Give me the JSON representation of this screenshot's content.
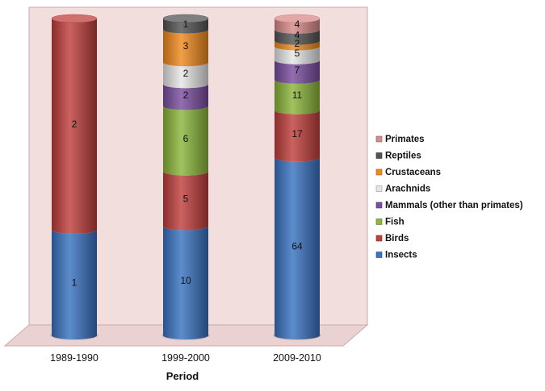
{
  "chart_data": {
    "type": "bar",
    "stacked": true,
    "style": "3d-cylinder",
    "title": "",
    "xlabel": "Period",
    "ylabel": "",
    "categories": [
      "1989-1990",
      "1999-2000",
      "2009-2010"
    ],
    "series": [
      {
        "name": "Insects",
        "color": "#3a73c1",
        "values": [
          1,
          10,
          64
        ]
      },
      {
        "name": "Birds",
        "color": "#c0403d",
        "values": [
          2,
          5,
          17
        ]
      },
      {
        "name": "Fish",
        "color": "#8cb63c",
        "values": [
          0,
          6,
          11
        ]
      },
      {
        "name": "Mammals (other than primates)",
        "color": "#7a4ea0",
        "values": [
          0,
          2,
          7
        ]
      },
      {
        "name": "Arachnids",
        "color": "#e6e6e6",
        "values": [
          0,
          2,
          5
        ]
      },
      {
        "name": "Crustaceans",
        "color": "#ef8a1f",
        "values": [
          0,
          3,
          2
        ]
      },
      {
        "name": "Reptiles",
        "color": "#545454",
        "values": [
          0,
          1,
          4
        ]
      },
      {
        "name": "Primates",
        "color": "#d98a8a",
        "values": [
          0,
          0,
          4
        ]
      }
    ],
    "legend_position": "right",
    "grid": false,
    "wall_color": "#f3dede",
    "floor_color": "#ebd2d2"
  }
}
